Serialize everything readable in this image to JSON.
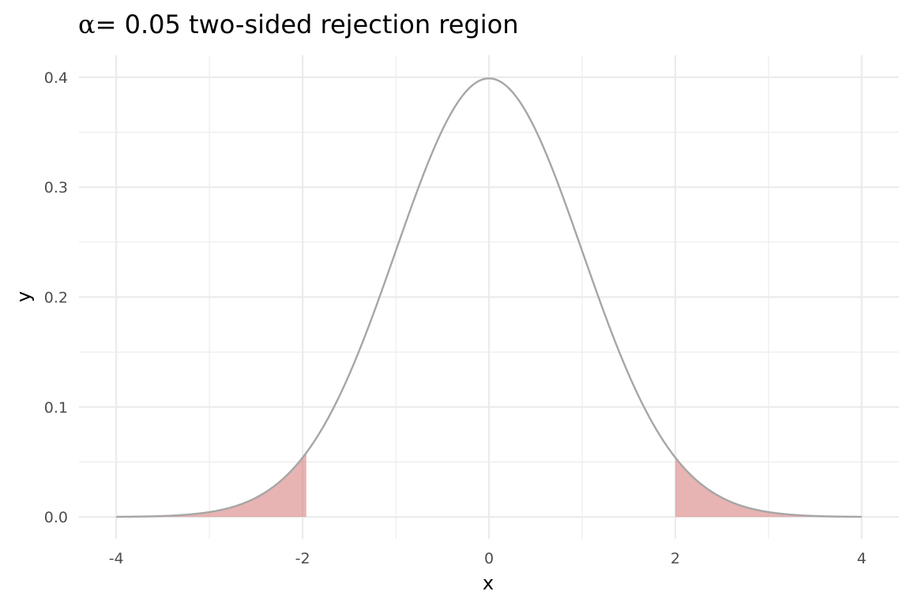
{
  "chart_data": {
    "type": "area",
    "title": {
      "symbol": "α",
      "equals": "=",
      "text": " 0.05 two-sided rejection region"
    },
    "xlabel": "x",
    "ylabel": "y",
    "xlim": [
      -4,
      4
    ],
    "ylim": [
      0,
      0.4
    ],
    "x_ticks": [
      -4,
      -2,
      0,
      2,
      4
    ],
    "x_tick_labels": [
      "-4",
      "-2",
      "0",
      "2",
      "4"
    ],
    "y_ticks": [
      0,
      0.1,
      0.2,
      0.3,
      0.4
    ],
    "y_tick_labels": [
      "0.0",
      "0.1",
      "0.2",
      "0.3",
      "0.4"
    ],
    "grid": true,
    "curve": {
      "distribution": "standard normal density",
      "x_range": [
        -4,
        4
      ],
      "color": "#a6a6a6"
    },
    "shaded_regions": [
      {
        "from": -4,
        "to": -1.96
      },
      {
        "from": 2.0,
        "to": 4
      }
    ],
    "fill_color": "#d98080",
    "fill_opacity": 0.6
  }
}
